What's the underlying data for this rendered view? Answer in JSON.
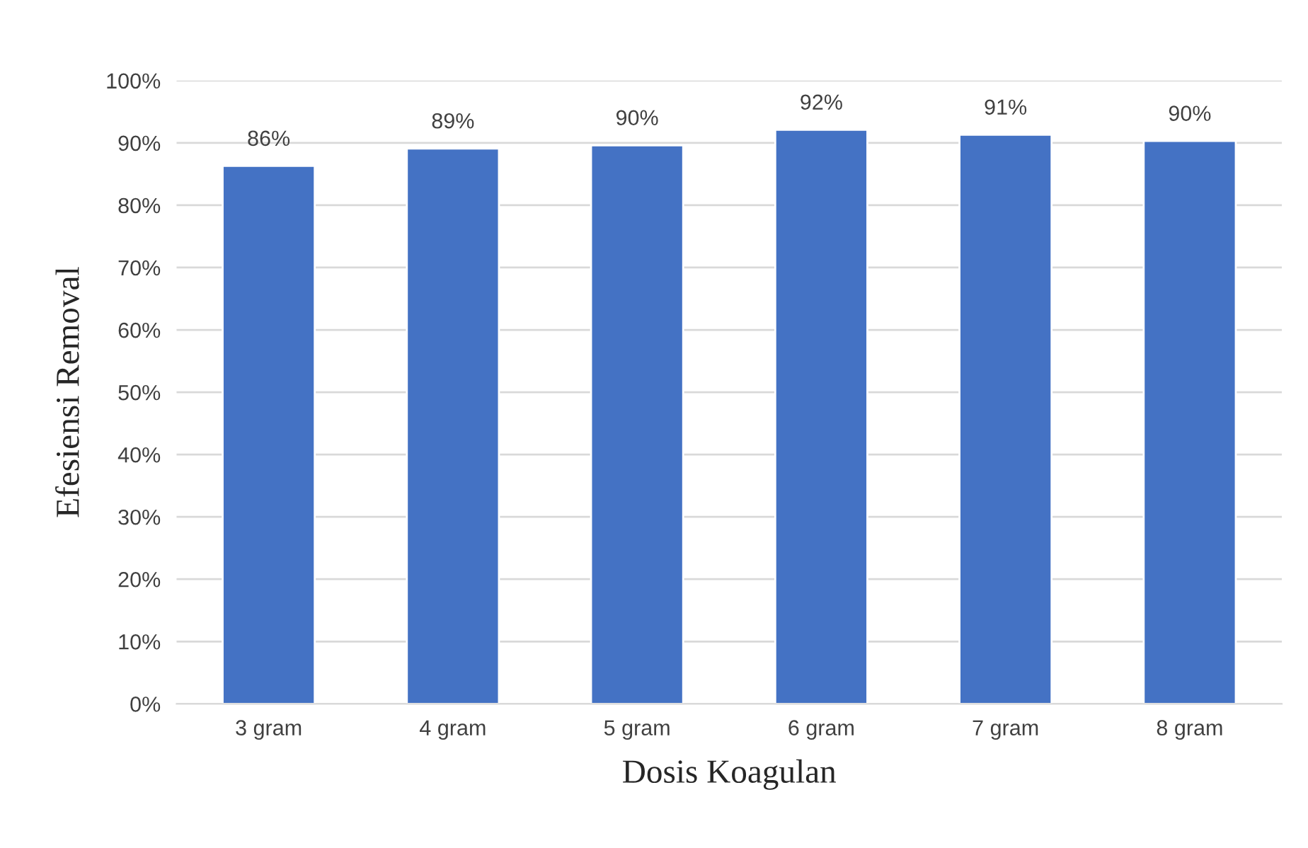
{
  "chart_data": {
    "type": "bar",
    "xlabel": "Dosis Koagulan",
    "ylabel": "Efesiensi Removal",
    "categories": [
      "3 gram",
      "4 gram",
      "5 gram",
      "6 gram",
      "7 gram",
      "8 gram"
    ],
    "values": [
      86.3,
      89.1,
      89.6,
      92.1,
      91.3,
      90.3
    ],
    "value_labels": [
      "86%",
      "89%",
      "90%",
      "92%",
      "91%",
      "90%"
    ],
    "color": "#4472c4",
    "ylim": [
      0,
      100
    ],
    "yticks": [
      {
        "value": 0,
        "label": "0%"
      },
      {
        "value": 10,
        "label": "10%"
      },
      {
        "value": 20,
        "label": "20%"
      },
      {
        "value": 30,
        "label": "30%"
      },
      {
        "value": 40,
        "label": "40%"
      },
      {
        "value": 50,
        "label": "50%"
      },
      {
        "value": 60,
        "label": "60%"
      },
      {
        "value": 70,
        "label": "70%"
      },
      {
        "value": 80,
        "label": "80%"
      },
      {
        "value": 90,
        "label": "90%"
      },
      {
        "value": 100,
        "label": "100%"
      }
    ],
    "grid": "y",
    "legend": false
  }
}
